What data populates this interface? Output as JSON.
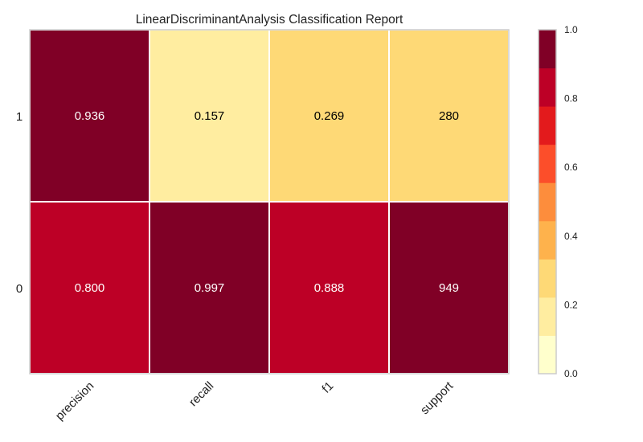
{
  "chart_data": {
    "type": "heatmap",
    "title": "LinearDiscriminantAnalysis Classification Report",
    "xlabel": "",
    "ylabel": "",
    "columns": [
      "precision",
      "recall",
      "f1",
      "support"
    ],
    "rows": [
      "1",
      "0"
    ],
    "cells": [
      [
        {
          "label": "0.936",
          "value": 0.936
        },
        {
          "label": "0.157",
          "value": 0.157
        },
        {
          "label": "0.269",
          "value": 0.269
        },
        {
          "label": "280",
          "value": 0.295
        }
      ],
      [
        {
          "label": "0.800",
          "value": 0.8
        },
        {
          "label": "0.997",
          "value": 0.997
        },
        {
          "label": "0.888",
          "value": 0.888
        },
        {
          "label": "949",
          "value": 1.0
        }
      ]
    ],
    "colorbar": {
      "ticks": [
        "0.0",
        "0.2",
        "0.4",
        "0.6",
        "0.8",
        "1.0"
      ],
      "tick_values": [
        0,
        0.2,
        0.4,
        0.6,
        0.8,
        1.0
      ],
      "range": [
        0,
        1
      ],
      "colors": [
        "#ffffcc",
        "#ffeda0",
        "#fed976",
        "#feb24c",
        "#fd8d3c",
        "#fc4e2a",
        "#e31a1c",
        "#bd0026",
        "#800026"
      ]
    },
    "legend": "right"
  }
}
